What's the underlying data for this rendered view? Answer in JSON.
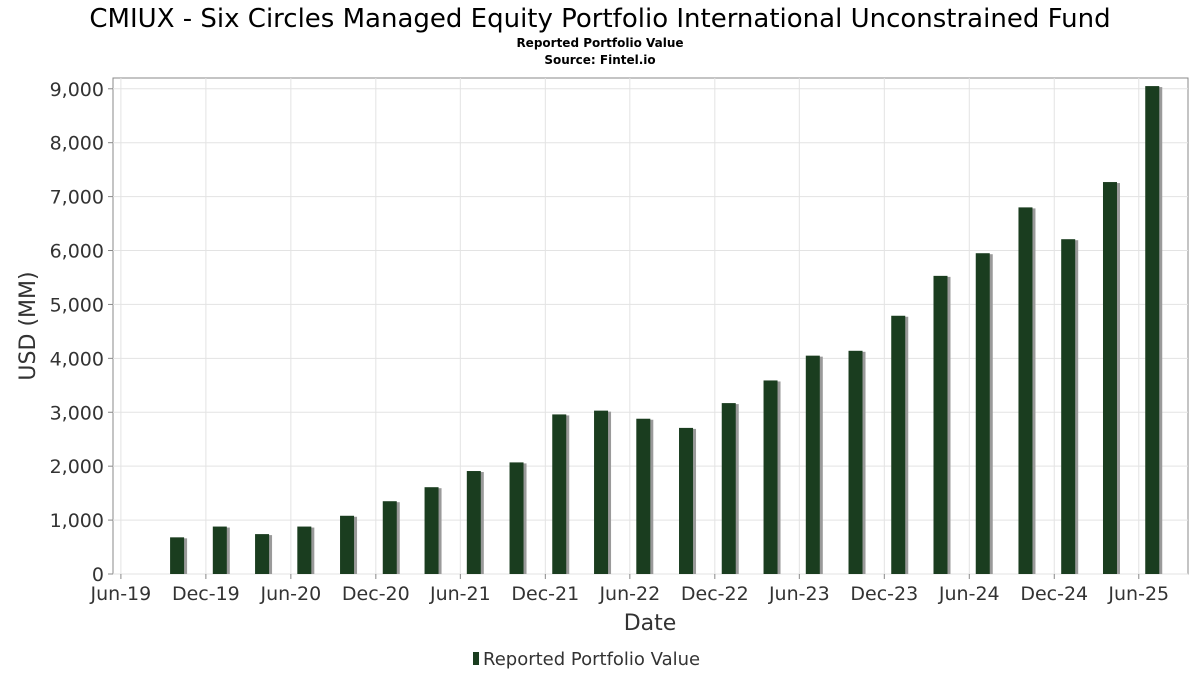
{
  "chart_data": {
    "type": "bar",
    "title": "CMIUX - Six Circles Managed Equity Portfolio International Unconstrained Fund",
    "subtitle": "Reported Portfolio Value",
    "source": "Source: Fintel.io",
    "xlabel": "Date",
    "ylabel": "USD (MM)",
    "ylim": [
      0,
      9200
    ],
    "xlim": [
      "2019-05-15",
      "2025-09-15"
    ],
    "grid": true,
    "legend_position": "bottom",
    "bar_color": "#1a3d1f",
    "yticks": [
      0,
      1000,
      2000,
      3000,
      4000,
      5000,
      6000,
      7000,
      8000,
      9000
    ],
    "ytick_labels": [
      "0",
      "1,000",
      "2,000",
      "3,000",
      "4,000",
      "5,000",
      "6,000",
      "7,000",
      "8,000",
      "9,000"
    ],
    "xticks": [
      "2019-06-01",
      "2019-12-01",
      "2020-06-01",
      "2020-12-01",
      "2021-06-01",
      "2021-12-01",
      "2022-06-01",
      "2022-12-01",
      "2023-06-01",
      "2023-12-01",
      "2024-06-01",
      "2024-12-01",
      "2025-06-01"
    ],
    "xtick_labels": [
      "Jun-19",
      "Dec-19",
      "Jun-20",
      "Dec-20",
      "Jun-21",
      "Dec-21",
      "Jun-22",
      "Dec-22",
      "Jun-23",
      "Dec-23",
      "Jun-24",
      "Dec-24",
      "Jun-25"
    ],
    "series": [
      {
        "name": "Reported Portfolio Value",
        "points": [
          {
            "x": "2019-09-30",
            "y": 680
          },
          {
            "x": "2019-12-31",
            "y": 880
          },
          {
            "x": "2020-03-31",
            "y": 740
          },
          {
            "x": "2020-06-30",
            "y": 880
          },
          {
            "x": "2020-09-30",
            "y": 1080
          },
          {
            "x": "2020-12-31",
            "y": 1350
          },
          {
            "x": "2021-03-31",
            "y": 1610
          },
          {
            "x": "2021-06-30",
            "y": 1910
          },
          {
            "x": "2021-09-30",
            "y": 2070
          },
          {
            "x": "2021-12-31",
            "y": 2960
          },
          {
            "x": "2022-03-31",
            "y": 3030
          },
          {
            "x": "2022-06-30",
            "y": 2880
          },
          {
            "x": "2022-09-30",
            "y": 2710
          },
          {
            "x": "2022-12-31",
            "y": 3170
          },
          {
            "x": "2023-03-31",
            "y": 3590
          },
          {
            "x": "2023-06-30",
            "y": 4050
          },
          {
            "x": "2023-09-30",
            "y": 4140
          },
          {
            "x": "2023-12-31",
            "y": 4790
          },
          {
            "x": "2024-03-31",
            "y": 5530
          },
          {
            "x": "2024-06-30",
            "y": 5950
          },
          {
            "x": "2024-09-30",
            "y": 6800
          },
          {
            "x": "2024-12-31",
            "y": 6210
          },
          {
            "x": "2025-03-31",
            "y": 7270
          },
          {
            "x": "2025-06-30",
            "y": 9050
          }
        ]
      }
    ]
  }
}
